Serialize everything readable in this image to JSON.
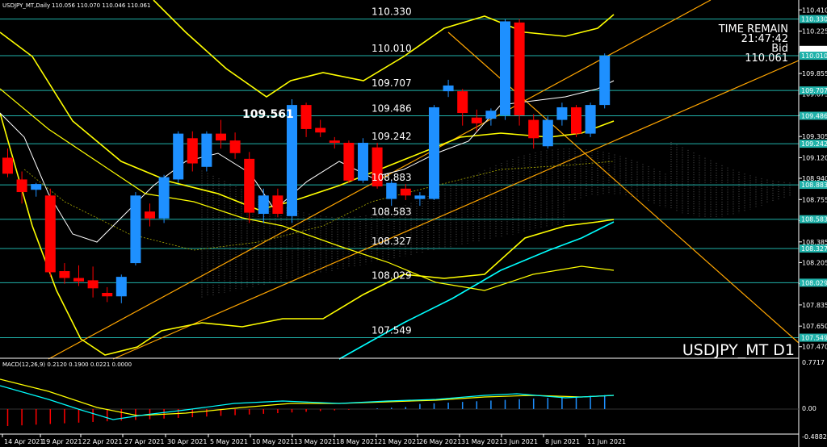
{
  "header": {
    "title": "USDJPY_MT,Daily",
    "ohlc": "110.056 110.070 110.046 110.061"
  },
  "info_panel": {
    "time_remain_label": "TIME REMAIN",
    "time_remain": "21:47:42",
    "bid_label": "Bid",
    "bid": "110.061"
  },
  "symbol_label": "USDJPY_MT D1",
  "highlight_price": "109.561",
  "level_labels": [
    "110.330",
    "110.010",
    "109.707",
    "109.486",
    "109.242",
    "108.883",
    "108.583",
    "108.327",
    "108.029",
    "107.549"
  ],
  "price_axis": {
    "ticks": [
      "110.410",
      "110.225",
      "110.040",
      "109.855",
      "109.675",
      "109.490",
      "109.305",
      "109.120",
      "108.940",
      "108.755",
      "108.570",
      "108.385",
      "108.205",
      "108.020",
      "107.835",
      "107.650",
      "107.470"
    ],
    "tags": [
      {
        "label": "110.330",
        "style": "cyan"
      },
      {
        "label": "110.061",
        "style": "white"
      },
      {
        "label": "110.010",
        "style": "cyan"
      },
      {
        "label": "109.707",
        "style": "cyan"
      },
      {
        "label": "109.486",
        "style": "cyan"
      },
      {
        "label": "109.242",
        "style": "cyan"
      },
      {
        "label": "108.883",
        "style": "cyan"
      },
      {
        "label": "108.583",
        "style": "cyan"
      },
      {
        "label": "108.327",
        "style": "cyan"
      },
      {
        "label": "108.029",
        "style": "cyan"
      },
      {
        "label": "107.549",
        "style": "cyan"
      }
    ]
  },
  "macd": {
    "label": "MACD(12,26,9) 0.2120 0.1900 0.0221 0.0000",
    "ticks": [
      "0.7717",
      "0.00",
      "-0.4882"
    ]
  },
  "date_axis": [
    "14 Apr 2021",
    "19 Apr 2021",
    "22 Apr 2021",
    "27 Apr 2021",
    "30 Apr 2021",
    "5 May 2021",
    "10 May 2021",
    "13 May 2021",
    "18 May 2021",
    "21 May 2021",
    "26 May 2021",
    "31 May 2021",
    "3 Jun 2021",
    "8 Jun 2021",
    "11 Jun 2021"
  ],
  "colors": {
    "bull": "#1e90ff",
    "bear": "#ff0000",
    "level_line": "#20b2aa",
    "bollinger": "#ffff00",
    "trendline": "#ffa500",
    "ma_white": "#ffffff",
    "ma_cyan": "#00ffff"
  },
  "chart_data": {
    "type": "candlestick",
    "candles": [
      {
        "o": 109.12,
        "h": 109.2,
        "c": 108.98,
        "l": 108.95,
        "d": "bear"
      },
      {
        "o": 108.93,
        "h": 109.0,
        "c": 108.82,
        "l": 108.72,
        "d": "bear"
      },
      {
        "o": 108.84,
        "h": 108.9,
        "c": 108.89,
        "l": 108.78,
        "d": "bull"
      },
      {
        "o": 108.79,
        "h": 108.85,
        "c": 108.12,
        "l": 108.08,
        "d": "bear"
      },
      {
        "o": 108.13,
        "h": 108.2,
        "c": 108.07,
        "l": 108.02,
        "d": "bear"
      },
      {
        "o": 108.07,
        "h": 108.18,
        "c": 108.04,
        "l": 108.0,
        "d": "bear"
      },
      {
        "o": 108.05,
        "h": 108.17,
        "c": 107.98,
        "l": 107.9,
        "d": "bear"
      },
      {
        "o": 107.94,
        "h": 107.99,
        "c": 107.91,
        "l": 107.86,
        "d": "bear"
      },
      {
        "o": 107.91,
        "h": 108.1,
        "c": 108.08,
        "l": 107.85,
        "d": "bull"
      },
      {
        "o": 108.2,
        "h": 108.82,
        "c": 108.79,
        "l": 108.18,
        "d": "bull"
      },
      {
        "o": 108.65,
        "h": 108.72,
        "c": 108.59,
        "l": 108.52,
        "d": "bear"
      },
      {
        "o": 108.59,
        "h": 108.97,
        "c": 108.95,
        "l": 108.55,
        "d": "bull"
      },
      {
        "o": 108.93,
        "h": 109.35,
        "c": 109.33,
        "l": 108.9,
        "d": "bull"
      },
      {
        "o": 109.29,
        "h": 109.35,
        "c": 109.07,
        "l": 109.0,
        "d": "bear"
      },
      {
        "o": 109.04,
        "h": 109.35,
        "c": 109.33,
        "l": 109.0,
        "d": "bull"
      },
      {
        "o": 109.33,
        "h": 109.45,
        "c": 109.27,
        "l": 109.2,
        "d": "bear"
      },
      {
        "o": 109.27,
        "h": 109.34,
        "c": 109.16,
        "l": 109.11,
        "d": "bear"
      },
      {
        "o": 109.11,
        "h": 109.17,
        "c": 108.64,
        "l": 108.55,
        "d": "bear"
      },
      {
        "o": 108.63,
        "h": 108.85,
        "c": 108.79,
        "l": 108.55,
        "d": "bull"
      },
      {
        "o": 108.79,
        "h": 108.85,
        "c": 108.63,
        "l": 108.6,
        "d": "bear"
      },
      {
        "o": 108.61,
        "h": 109.63,
        "c": 109.58,
        "l": 108.55,
        "d": "bull"
      },
      {
        "o": 109.58,
        "h": 109.6,
        "c": 109.37,
        "l": 109.3,
        "d": "bear"
      },
      {
        "o": 109.38,
        "h": 109.45,
        "c": 109.34,
        "l": 109.3,
        "d": "bear"
      },
      {
        "o": 109.27,
        "h": 109.3,
        "c": 109.25,
        "l": 109.2,
        "d": "bear"
      },
      {
        "o": 109.25,
        "h": 109.27,
        "c": 108.92,
        "l": 108.9,
        "d": "bear"
      },
      {
        "o": 108.92,
        "h": 109.29,
        "c": 109.25,
        "l": 108.9,
        "d": "bull"
      },
      {
        "o": 109.21,
        "h": 109.25,
        "c": 108.87,
        "l": 108.85,
        "d": "bear"
      },
      {
        "o": 108.76,
        "h": 108.92,
        "c": 108.9,
        "l": 108.7,
        "d": "bull"
      },
      {
        "o": 108.85,
        "h": 108.89,
        "c": 108.79,
        "l": 108.75,
        "d": "bear"
      },
      {
        "o": 108.79,
        "h": 108.82,
        "c": 108.76,
        "l": 108.7,
        "d": "bull"
      },
      {
        "o": 108.76,
        "h": 109.58,
        "c": 109.56,
        "l": 108.75,
        "d": "bull"
      },
      {
        "o": 109.7,
        "h": 109.8,
        "c": 109.75,
        "l": 109.65,
        "d": "bull"
      },
      {
        "o": 109.7,
        "h": 109.72,
        "c": 109.51,
        "l": 109.4,
        "d": "bear"
      },
      {
        "o": 109.47,
        "h": 109.54,
        "c": 109.42,
        "l": 109.35,
        "d": "bear"
      },
      {
        "o": 109.46,
        "h": 109.55,
        "c": 109.53,
        "l": 109.4,
        "d": "bull"
      },
      {
        "o": 109.49,
        "h": 110.33,
        "c": 110.31,
        "l": 109.45,
        "d": "bull"
      },
      {
        "o": 110.3,
        "h": 110.33,
        "c": 109.49,
        "l": 109.4,
        "d": "bear"
      },
      {
        "o": 109.45,
        "h": 109.5,
        "c": 109.29,
        "l": 109.2,
        "d": "bear"
      },
      {
        "o": 109.22,
        "h": 109.48,
        "c": 109.45,
        "l": 109.2,
        "d": "bull"
      },
      {
        "o": 109.45,
        "h": 109.6,
        "c": 109.56,
        "l": 109.4,
        "d": "bull"
      },
      {
        "o": 109.56,
        "h": 109.58,
        "c": 109.33,
        "l": 109.3,
        "d": "bear"
      },
      {
        "o": 109.33,
        "h": 109.6,
        "c": 109.58,
        "l": 109.3,
        "d": "bull"
      },
      {
        "o": 109.58,
        "h": 110.03,
        "c": 110.01,
        "l": 109.55,
        "d": "bull"
      }
    ],
    "horizontal_levels": [
      110.33,
      110.01,
      109.707,
      109.486,
      109.242,
      108.883,
      108.583,
      108.327,
      108.029,
      107.549
    ],
    "ylim": [
      107.44,
      110.44
    ]
  }
}
